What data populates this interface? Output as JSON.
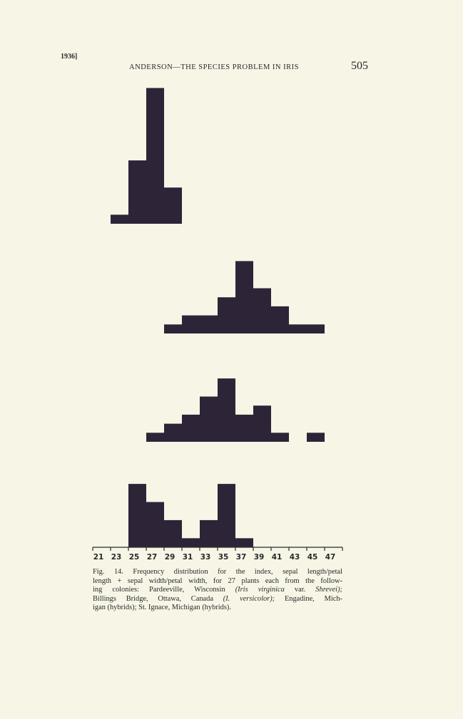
{
  "header": {
    "left": "1936]",
    "title": "ANDERSON—THE SPECIES PROBLEM IN IRIS",
    "page": "505"
  },
  "chart_data": [
    {
      "type": "histogram",
      "bins": [
        21,
        23,
        25,
        27,
        29,
        31,
        33,
        35,
        37,
        39,
        41,
        43,
        45,
        47,
        49
      ],
      "values": [
        0,
        1,
        7,
        15,
        4,
        0,
        0,
        0,
        0,
        0,
        0,
        0,
        0,
        0
      ],
      "color": "#2e2438"
    },
    {
      "type": "histogram",
      "bins": [
        21,
        23,
        25,
        27,
        29,
        31,
        33,
        35,
        37,
        39,
        41,
        43,
        45,
        47,
        49
      ],
      "values": [
        0,
        0,
        0,
        0,
        1,
        2,
        2,
        4,
        8,
        5,
        3,
        1,
        1,
        0
      ],
      "color": "#2e2438"
    },
    {
      "type": "histogram",
      "bins": [
        21,
        23,
        25,
        27,
        29,
        31,
        33,
        35,
        37,
        39,
        41,
        43,
        45,
        47,
        49
      ],
      "values": [
        0,
        0,
        0,
        1,
        2,
        3,
        5,
        7,
        3,
        4,
        1,
        0,
        1,
        0
      ],
      "color": "#2e2438"
    },
    {
      "type": "histogram",
      "bins": [
        21,
        23,
        25,
        27,
        29,
        31,
        33,
        35,
        37,
        39,
        41,
        43,
        45,
        47,
        49
      ],
      "values": [
        0,
        0,
        7,
        5,
        3,
        1,
        3,
        7,
        1,
        0,
        0,
        0,
        0,
        0
      ],
      "color": "#2e2438",
      "xlim": [
        21,
        49
      ],
      "xticks": [
        21,
        23,
        25,
        27,
        29,
        31,
        33,
        35,
        37,
        39,
        41,
        43,
        45,
        47
      ]
    }
  ],
  "caption": [
    [
      {
        "text": "Fig. 14.  Frequency distribution for the index, sepal length/petal"
      }
    ],
    [
      {
        "text": "length + sepal width/petal width, for 27 plants each from the follow-"
      }
    ],
    [
      {
        "text": "ing colonies: Pardeeville, Wisconsin "
      },
      {
        "text": "(Iris virginica",
        "italic": true
      },
      {
        "text": " var. "
      },
      {
        "text": "Shrevei);",
        "italic": true
      }
    ],
    [
      {
        "text": "Billings Bridge, Ottawa, Canada "
      },
      {
        "text": "(I. versicolor);",
        "italic": true
      },
      {
        "text": " Engadine, Mich-"
      }
    ],
    [
      {
        "text": "igan (hybrids); St. Ignace, Michigan (hybrids)."
      }
    ]
  ]
}
